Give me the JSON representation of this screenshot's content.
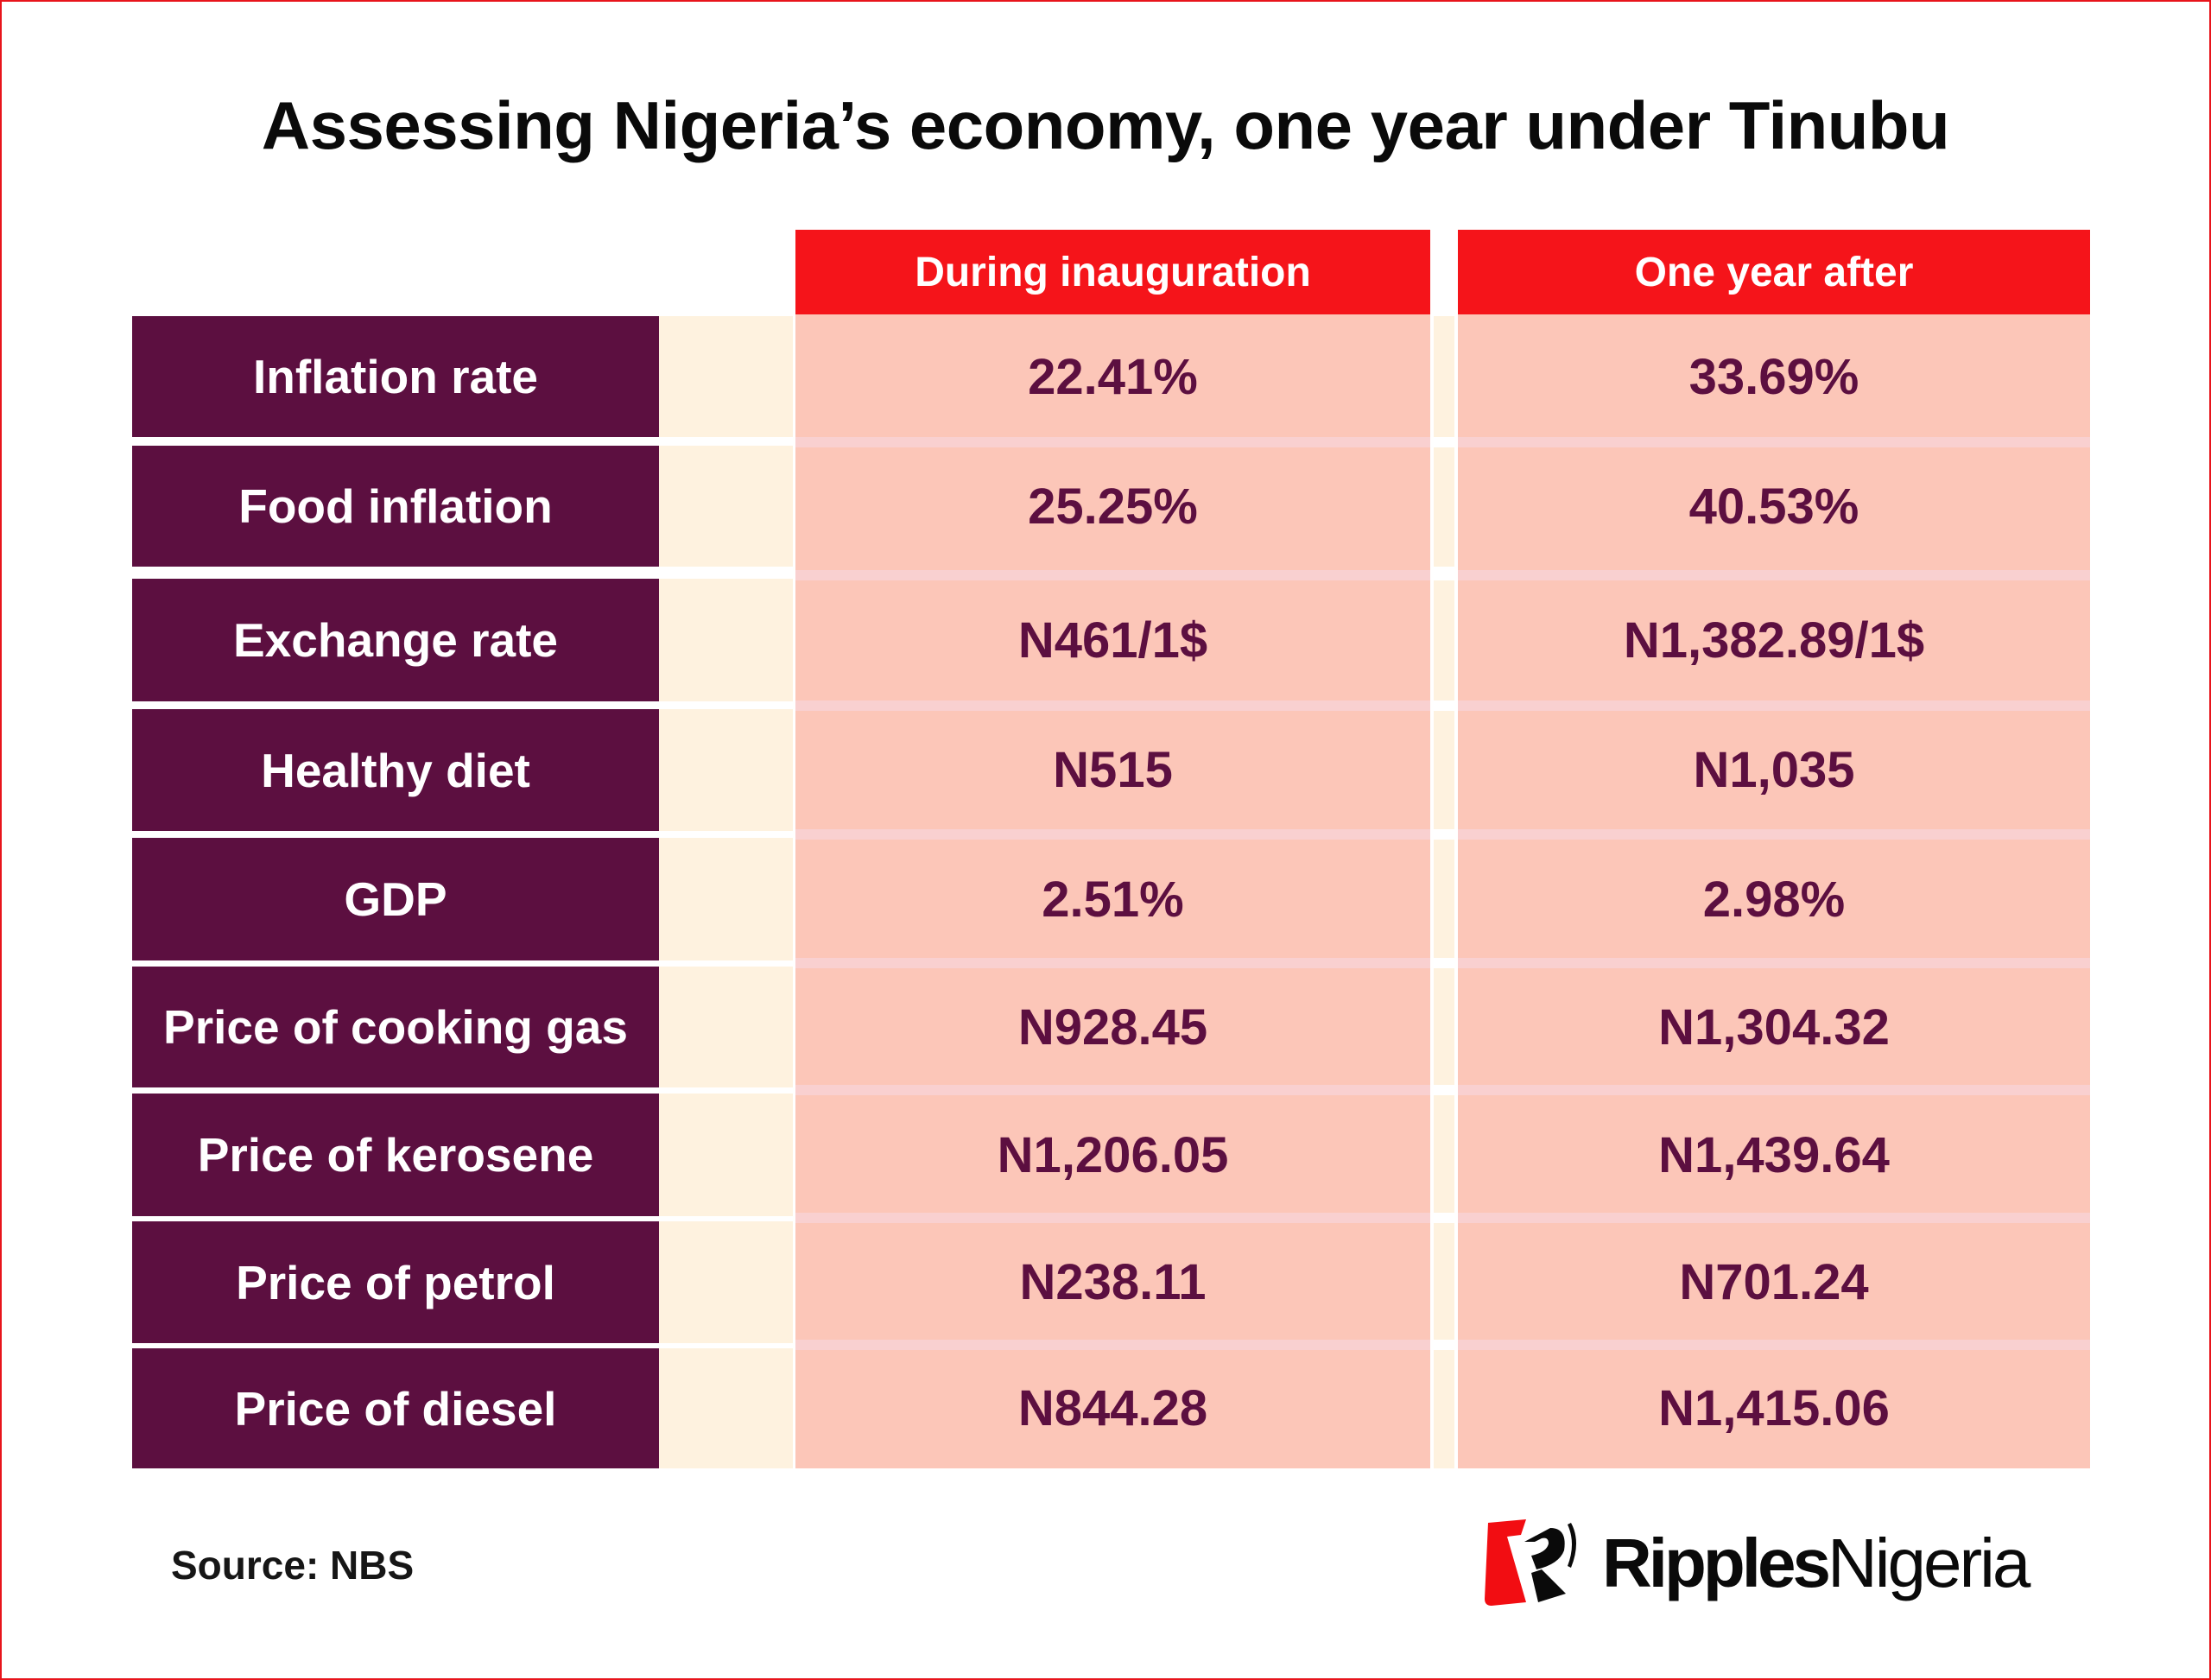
{
  "title": "Assessing Nigeria’s economy, one year under Tinubu",
  "table": {
    "headers": [
      "During inauguration",
      "One year after"
    ],
    "rows": [
      {
        "label": "Inflation rate",
        "during": "22.41%",
        "after": "33.69%"
      },
      {
        "label": "Food inflation",
        "during": "25.25%",
        "after": "40.53%"
      },
      {
        "label": "Exchange rate",
        "during": "N461/1$",
        "after": "N1,382.89/1$"
      },
      {
        "label": "Healthy diet",
        "during": "N515",
        "after": "N1,035"
      },
      {
        "label": "GDP",
        "during": "2.51%",
        "after": "2.98%"
      },
      {
        "label": "Price of cooking gas",
        "during": "N928.45",
        "after": "N1,304.32"
      },
      {
        "label": "Price of kerosene",
        "during": "N1,206.05",
        "after": "N1,439.64"
      },
      {
        "label": "Price of petrol",
        "during": "N238.11",
        "after": "N701.24"
      },
      {
        "label": "Price of diesel",
        "during": "N844.28",
        "after": "N1,415.06"
      }
    ]
  },
  "footer": {
    "source": "Source: NBS",
    "logo_part1": "Ripples",
    "logo_part2": "Nigeria",
    "logo_icon": "ripples-r-icon"
  },
  "colors": {
    "header_red": "#f5141a",
    "label_purple": "#5c0f40",
    "cell_salmon": "#fcc6b8",
    "spacer_cream": "#fef2df",
    "border_red": "#e8141b"
  }
}
